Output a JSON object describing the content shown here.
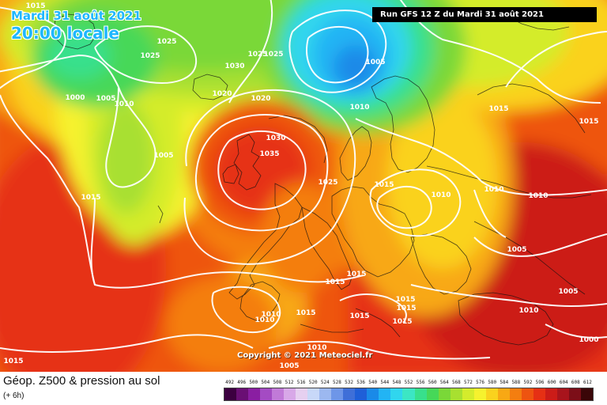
{
  "header": {
    "date_line": "Mardi 31 août 2021",
    "time_line": "20:00 locale",
    "run_info": "Run GFS 12 Z du Mardi 31 août 2021"
  },
  "copyright": "Copyright © 2021 Meteociel.fr",
  "legend": {
    "title": "Géop. Z500 & pression au sol",
    "subtitle": "(+ 6h)",
    "scale": [
      {
        "value": "492",
        "color": "#3c0040"
      },
      {
        "value": "496",
        "color": "#6a0f74"
      },
      {
        "value": "500",
        "color": "#8a1ea2"
      },
      {
        "value": "504",
        "color": "#a44bc3"
      },
      {
        "value": "508",
        "color": "#c17ad8"
      },
      {
        "value": "512",
        "color": "#d8a8e8"
      },
      {
        "value": "516",
        "color": "#e6d0f0"
      },
      {
        "value": "520",
        "color": "#c8d8f8"
      },
      {
        "value": "524",
        "color": "#9cb8f0"
      },
      {
        "value": "528",
        "color": "#6e96e8"
      },
      {
        "value": "532",
        "color": "#3f6fd8"
      },
      {
        "value": "536",
        "color": "#1f5fd8"
      },
      {
        "value": "540",
        "color": "#1a8ae8"
      },
      {
        "value": "544",
        "color": "#22b4f4"
      },
      {
        "value": "548",
        "color": "#30d6ee"
      },
      {
        "value": "552",
        "color": "#3ce6c4"
      },
      {
        "value": "556",
        "color": "#38e08c"
      },
      {
        "value": "560",
        "color": "#46d858"
      },
      {
        "value": "564",
        "color": "#7ad838"
      },
      {
        "value": "568",
        "color": "#a8e030"
      },
      {
        "value": "572",
        "color": "#d4ec2c"
      },
      {
        "value": "576",
        "color": "#f6f22e"
      },
      {
        "value": "580",
        "color": "#fad21e"
      },
      {
        "value": "584",
        "color": "#f8a814"
      },
      {
        "value": "588",
        "color": "#f47e10"
      },
      {
        "value": "592",
        "color": "#ee5410"
      },
      {
        "value": "596",
        "color": "#e63014"
      },
      {
        "value": "600",
        "color": "#cc1c18"
      },
      {
        "value": "604",
        "color": "#a8141c"
      },
      {
        "value": "608",
        "color": "#7c0e18"
      },
      {
        "value": "612",
        "color": "#3a0608"
      }
    ]
  },
  "pressure_labels": [
    "1015",
    "1025",
    "1025",
    "1030",
    "1025",
    "1025",
    "1005",
    "1020",
    "1020",
    "1000",
    "1005",
    "1010",
    "1010",
    "1005",
    "1030",
    "1035",
    "1025",
    "1015",
    "1015",
    "1010",
    "1010",
    "1010",
    "1015",
    "1005",
    "1015",
    "1015",
    "1015",
    "1015",
    "1010",
    "1010",
    "1015",
    "1005",
    "1010",
    "1000",
    "1015",
    "1010",
    "1005",
    "1015",
    "1015",
    "1015"
  ]
}
